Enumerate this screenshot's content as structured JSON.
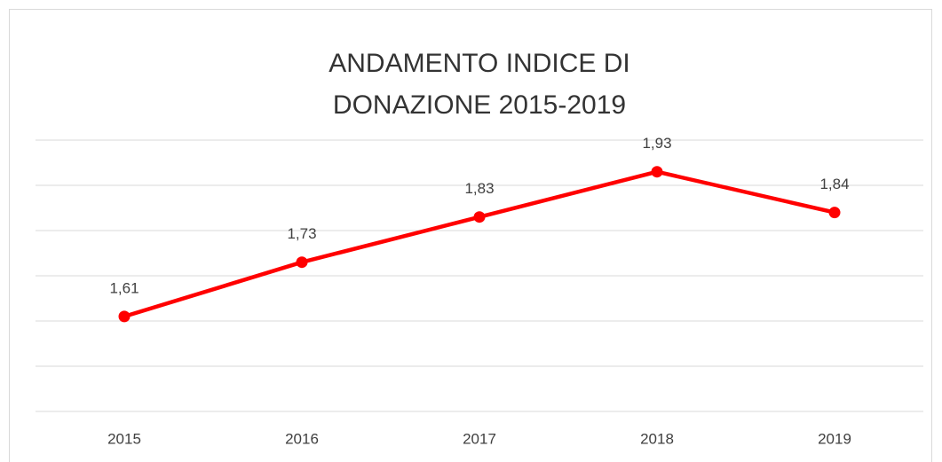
{
  "chart_data": {
    "type": "line",
    "title": "ANDAMENTO INDICE DI DONAZIONE 2015-2019",
    "categories": [
      "2015",
      "2016",
      "2017",
      "2018",
      "2019"
    ],
    "series": [
      {
        "color": "#ff0000",
        "values": [
          1.61,
          1.73,
          1.83,
          1.93,
          1.84
        ],
        "value_labels": [
          "1,61",
          "1,73",
          "1,83",
          "1,93",
          "1,84"
        ]
      }
    ],
    "ylim": [
      1.4,
      2.0
    ],
    "yticks": [
      1.4,
      1.5,
      1.6,
      1.7,
      1.8,
      1.9,
      2.0
    ],
    "grid": true
  }
}
